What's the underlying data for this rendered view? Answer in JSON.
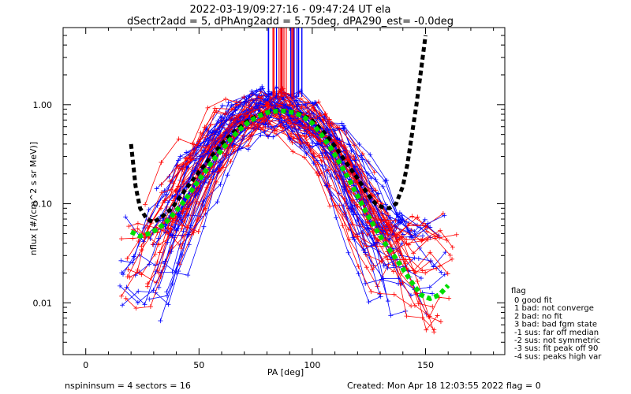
{
  "chart_data": {
    "type": "scatter",
    "title": "2022-03-19/09:27:16 - 09:47:24 UT ela",
    "subtitle": "dSectr2add = 5, dPhAng2add = 5.75deg, dPA290_est=  -0.0deg",
    "xlabel": "PA [deg]",
    "ylabel": "nflux [#/(cm^2 s sr MeV)]",
    "xlim": [
      -10,
      185
    ],
    "ylim": [
      0.003,
      6.0
    ],
    "yscale": "log",
    "x_ticks": [
      0,
      50,
      100,
      150
    ],
    "x_tick_labels": [
      "0",
      "50",
      "100",
      "150"
    ],
    "y_ticks": [
      0.01,
      0.1,
      1.0
    ],
    "y_tick_labels": [
      "0.01",
      "0.10",
      "1.00"
    ],
    "grid": false,
    "colors": {
      "series_a": "#ff0000",
      "series_b": "#0000ff",
      "fit_green": "#00dd00",
      "fit_black": "#000000"
    },
    "fit_green": {
      "x": [
        20,
        24,
        28,
        32,
        36,
        40,
        44,
        48,
        52,
        56,
        60,
        64,
        68,
        72,
        76,
        80,
        84,
        88,
        92,
        96,
        100,
        104,
        108,
        112,
        116,
        120,
        124,
        128,
        132,
        136,
        140,
        144,
        148,
        152,
        156,
        160
      ],
      "y": [
        0.052,
        0.047,
        0.05,
        0.056,
        0.067,
        0.085,
        0.11,
        0.15,
        0.2,
        0.27,
        0.35,
        0.45,
        0.56,
        0.67,
        0.76,
        0.83,
        0.86,
        0.86,
        0.83,
        0.76,
        0.65,
        0.5,
        0.37,
        0.26,
        0.18,
        0.12,
        0.08,
        0.056,
        0.04,
        0.03,
        0.022,
        0.016,
        0.012,
        0.011,
        0.012,
        0.015
      ]
    },
    "fit_black": {
      "x": [
        20,
        22,
        24,
        27,
        30,
        34,
        38,
        42,
        46,
        50,
        55,
        60,
        65,
        70,
        75,
        80,
        85,
        90,
        95,
        100,
        105,
        110,
        115,
        120,
        125,
        128,
        131,
        134,
        137,
        140,
        142,
        144,
        146,
        148,
        150
      ],
      "y": [
        0.4,
        0.15,
        0.09,
        0.07,
        0.065,
        0.075,
        0.09,
        0.12,
        0.16,
        0.21,
        0.29,
        0.4,
        0.52,
        0.65,
        0.76,
        0.84,
        0.88,
        0.86,
        0.8,
        0.69,
        0.53,
        0.38,
        0.26,
        0.18,
        0.12,
        0.1,
        0.092,
        0.09,
        0.1,
        0.15,
        0.25,
        0.5,
        1.0,
        2.2,
        5.0
      ]
    },
    "legend": {
      "title": "flag",
      "placement": "right",
      "items": [
        "0 good fit",
        "1 bad: not converge",
        "2 bad: no fit",
        "3 bad: bad fgm state",
        "-1 sus: far off median",
        "-2 sus: not symmetric",
        "-3 sus: fit peak off 90",
        "-4 sus: peaks high var"
      ]
    }
  },
  "footer": {
    "left": "nspininsum =  4  sectors = 16",
    "right": "Created: Mon Apr 18 12:03:55 2022   flag = 0"
  }
}
